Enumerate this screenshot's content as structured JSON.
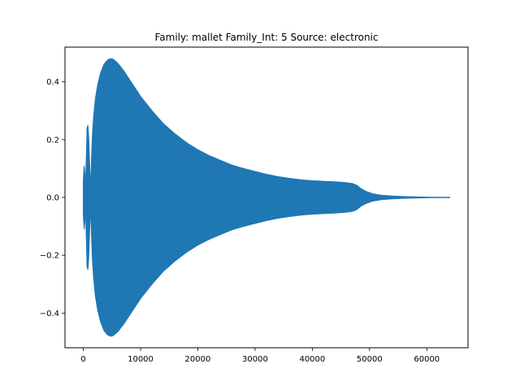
{
  "chart_data": {
    "type": "area",
    "title": "Family: mallet Family_Int: 5 Source: electronic",
    "xlabel": "",
    "ylabel": "",
    "xlim": [
      -3200,
      67200
    ],
    "ylim": [
      -0.52,
      0.52
    ],
    "x_ticks": [
      0,
      10000,
      20000,
      30000,
      40000,
      50000,
      60000
    ],
    "x_tick_labels": [
      "0",
      "10000",
      "20000",
      "30000",
      "40000",
      "50000",
      "60000"
    ],
    "y_ticks": [
      -0.4,
      -0.2,
      0.0,
      0.2,
      0.4
    ],
    "y_tick_labels": [
      "−0.4",
      "−0.2",
      "0.0",
      "0.2",
      "0.4"
    ],
    "grid": false,
    "legend": "none",
    "series_color": "#1f77b4",
    "envelope": {
      "x": [
        0,
        150,
        250,
        400,
        550,
        650,
        800,
        950,
        1100,
        1300,
        1450,
        1600,
        1800,
        2100,
        2500,
        3000,
        3600,
        4200,
        4700,
        5200,
        6000,
        7000,
        8000,
        10000,
        12000,
        14000,
        16000,
        18000,
        20000,
        22000,
        24000,
        26000,
        28000,
        30000,
        32000,
        34000,
        36000,
        38000,
        40000,
        42000,
        44000,
        46000,
        47000,
        47800,
        48500,
        49500,
        50500,
        52000,
        54000,
        56000,
        58000,
        60000,
        62000,
        64000
      ],
      "upper": [
        0.06,
        0.11,
        0.09,
        0.05,
        0.16,
        0.24,
        0.25,
        0.21,
        0.12,
        0.03,
        0.15,
        0.22,
        0.28,
        0.34,
        0.39,
        0.43,
        0.46,
        0.475,
        0.48,
        0.478,
        0.465,
        0.44,
        0.41,
        0.35,
        0.3,
        0.255,
        0.22,
        0.19,
        0.165,
        0.145,
        0.128,
        0.112,
        0.1,
        0.09,
        0.08,
        0.072,
        0.066,
        0.061,
        0.058,
        0.056,
        0.054,
        0.051,
        0.048,
        0.042,
        0.03,
        0.02,
        0.013,
        0.008,
        0.005,
        0.003,
        0.002,
        0.0012,
        0.0008,
        0.0005
      ],
      "lower": [
        -0.06,
        -0.11,
        -0.09,
        -0.05,
        -0.16,
        -0.24,
        -0.25,
        -0.21,
        -0.12,
        -0.03,
        -0.15,
        -0.22,
        -0.28,
        -0.34,
        -0.39,
        -0.43,
        -0.46,
        -0.475,
        -0.48,
        -0.478,
        -0.465,
        -0.44,
        -0.41,
        -0.35,
        -0.3,
        -0.255,
        -0.22,
        -0.19,
        -0.165,
        -0.145,
        -0.128,
        -0.112,
        -0.1,
        -0.09,
        -0.08,
        -0.072,
        -0.066,
        -0.061,
        -0.058,
        -0.056,
        -0.054,
        -0.051,
        -0.048,
        -0.042,
        -0.03,
        -0.02,
        -0.013,
        -0.008,
        -0.005,
        -0.003,
        -0.002,
        -0.0012,
        -0.0008,
        -0.0005
      ]
    }
  }
}
